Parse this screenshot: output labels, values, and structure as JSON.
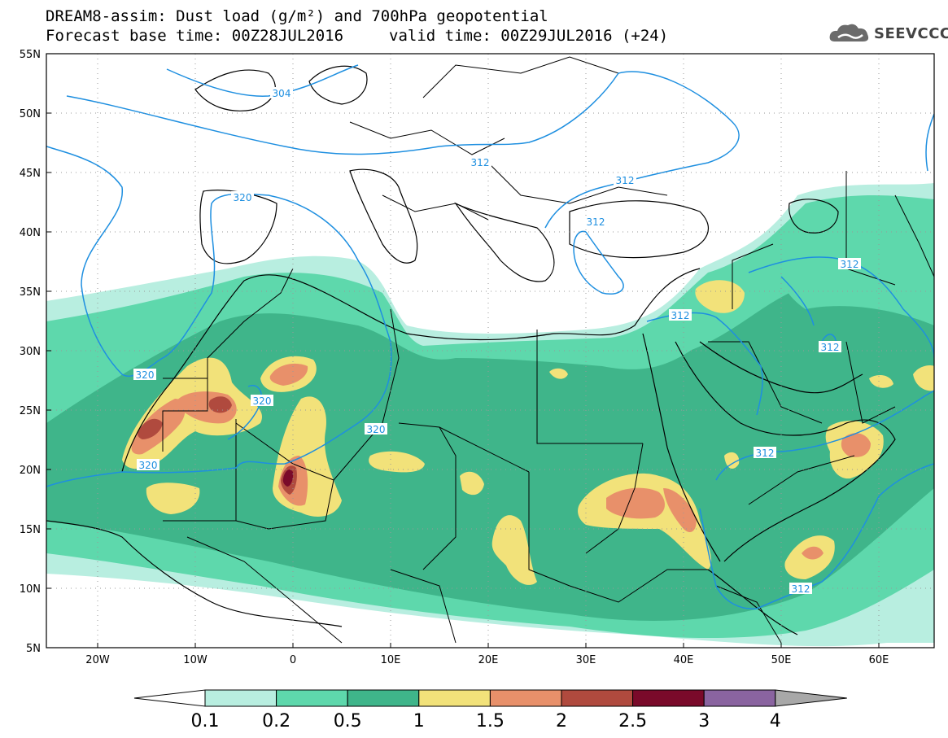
{
  "header": {
    "title_line1": "DREAM8-assim: Dust load (g/m²) and 700hPa geopotential",
    "title_line2a": "Forecast base time: 00Z28JUL2016",
    "title_line2b": "valid time: 00Z29JUL2016 (+24)",
    "logo_text": "SEEVCCC"
  },
  "map": {
    "lon_range": [
      -25,
      65
    ],
    "lat_range": [
      5,
      55
    ],
    "lat_labels": [
      "55N",
      "50N",
      "45N",
      "40N",
      "35N",
      "30N",
      "25N",
      "20N",
      "15N",
      "10N",
      "5N"
    ],
    "lon_labels": [
      "20W",
      "10W",
      "0",
      "10E",
      "20E",
      "30E",
      "40E",
      "50E",
      "60E"
    ],
    "contour_labels": [
      "304",
      "312",
      "312",
      "312",
      "320",
      "320",
      "320",
      "320",
      "320",
      "312",
      "312",
      "312",
      "312",
      "312"
    ]
  },
  "colorbar": {
    "labels": [
      "0.1",
      "0.2",
      "0.5",
      "1",
      "1.5",
      "2",
      "2.5",
      "3",
      "4"
    ],
    "colors": [
      "#ffffff",
      "#b8eee0",
      "#5ed8ac",
      "#3fb58a",
      "#f2e27a",
      "#e8906a",
      "#b04a3e",
      "#7a0a2a",
      "#8a64a0",
      "#a8a8a8"
    ]
  }
}
